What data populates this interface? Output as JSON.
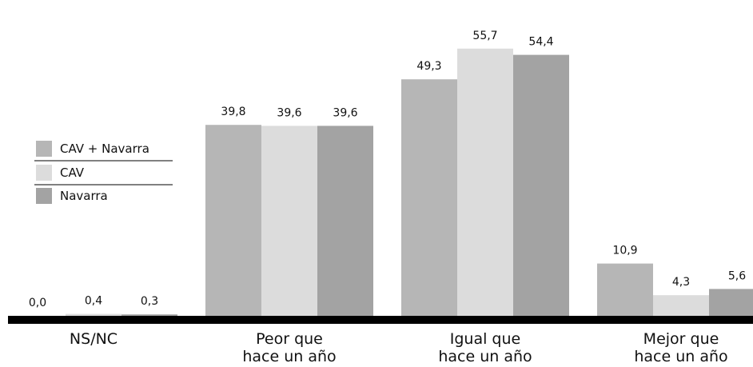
{
  "chart_data": {
    "type": "bar",
    "categories": [
      [
        "NS/NC"
      ],
      [
        "Peor que",
        "hace un año"
      ],
      [
        "Igual que",
        "hace un año"
      ],
      [
        "Mejor que",
        "hace un año"
      ]
    ],
    "series": [
      {
        "name": "CAV + Navarra",
        "values": [
          0.0,
          39.8,
          49.3,
          10.9
        ],
        "labels": [
          "0,0",
          "39,8",
          "49,3",
          "10,9"
        ],
        "color": "#b6b6b6"
      },
      {
        "name": "CAV",
        "values": [
          0.4,
          39.6,
          55.7,
          4.3
        ],
        "labels": [
          "0,4",
          "39,6",
          "55,7",
          "4,3"
        ],
        "color": "#dcdcdc"
      },
      {
        "name": "Navarra",
        "values": [
          0.3,
          39.6,
          54.4,
          5.6
        ],
        "labels": [
          "0,3",
          "39,6",
          "54,4",
          "5,6"
        ],
        "color": "#a3a3a3"
      }
    ],
    "ylim": [
      0,
      60
    ],
    "grid": false,
    "legend": "left",
    "axis_color": "#000000"
  }
}
